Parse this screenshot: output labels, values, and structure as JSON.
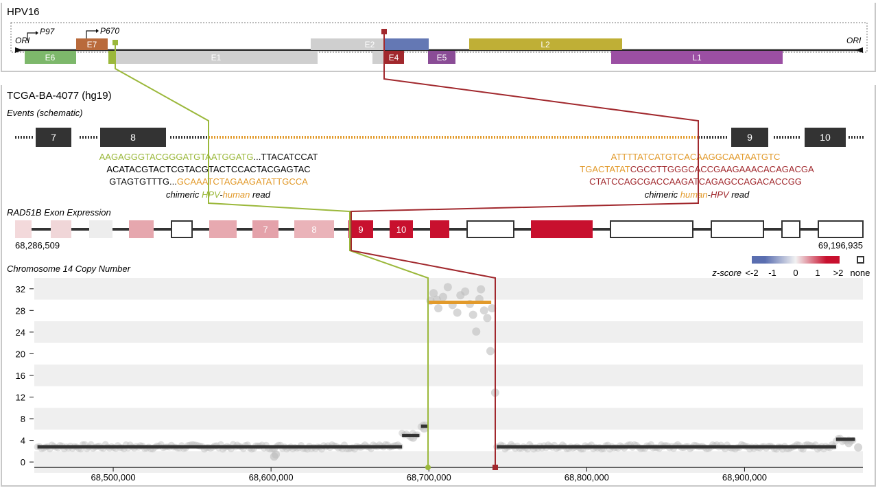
{
  "colors": {
    "green": "#9BB83B",
    "orange": "#E29A2B",
    "red": "#A1282D",
    "dark": "#333333",
    "gray": "#CFCFCF",
    "e6": "#7DB86B",
    "e7": "#B96A3B",
    "e2": "#6478B4",
    "e4": "#A1282D",
    "e5": "#8A4C96",
    "l2": "#BFAF36",
    "l1": "#9B4FA3"
  },
  "hpv": {
    "title": "HPV16",
    "ori_left": "ORI",
    "ori_right": "ORI",
    "promoters": [
      {
        "label": "P97"
      },
      {
        "label": "P670"
      }
    ],
    "genes": [
      {
        "name": "E6",
        "color": "#7DB86B"
      },
      {
        "name": "E7",
        "color": "#B96A3B"
      },
      {
        "name": "E1",
        "color": "#CFCFCF"
      },
      {
        "name": "E2",
        "color": "#CFCFCF"
      },
      {
        "name": "E4",
        "color": "#A1282D"
      },
      {
        "name": "E5",
        "color": "#8A4C96"
      },
      {
        "name": "L2",
        "color": "#BFAF36"
      },
      {
        "name": "L1",
        "color": "#9B4FA3"
      }
    ]
  },
  "sample": {
    "title": "TCGA-BA-4077 (hg19)"
  },
  "events": {
    "title": "Events (schematic)",
    "exons": [
      "7",
      "8",
      "9",
      "10"
    ],
    "left_read": {
      "line1_green": "AAGAGGGTACGGGATGTAATGGATG",
      "line1_black": "...TTACATCCAT",
      "line2": "ACATACGTACTCGTACGTACTCCACTACGAGTAC",
      "line3_black": "GTAGTGTTTG...",
      "line3_orange": "GCAAATCTAGAAGATATTGCCA",
      "caption_pre": "chimeric ",
      "caption_a": "HPV",
      "caption_mid": "-",
      "caption_b": "human",
      "caption_post": " read"
    },
    "right_read": {
      "line1": "ATTTTATCATGTCACAAGGCAATAATGTC",
      "line2_orange": "TGACTATAT",
      "line2_red": "CGCCTTGGGCACCGAAGAAACACAGACGA",
      "line3": "CTATCCAGCGACCAAGATCAGAGCCAGACACCGG",
      "caption_pre": "chimeric ",
      "caption_a": "human",
      "caption_mid": "-",
      "caption_b": "HPV",
      "caption_post": " read"
    }
  },
  "rad51b": {
    "title": "RAD51B Exon Expression",
    "start_label": "68,286,509",
    "end_label": "69,196,935",
    "exon_labels": [
      "7",
      "8",
      "9",
      "10"
    ],
    "legend": {
      "title": "z-score",
      "ticks": [
        "<-2",
        "-1",
        "0",
        "1",
        ">2"
      ],
      "none": "none",
      "low_color": "#5A6EB0",
      "mid_color": "#F2F2F2",
      "high_color": "#C8102E"
    }
  },
  "chart_data": {
    "type": "scatter",
    "title": "Chromosome 14 Copy Number",
    "xlim": [
      68450000,
      68975000
    ],
    "ylim": [
      -1,
      34
    ],
    "x_ticks": [
      68500000,
      68600000,
      68700000,
      68800000,
      68900000
    ],
    "x_tick_labels": [
      "68,500,000",
      "68,600,000",
      "68,700,000",
      "68,800,000",
      "68,900,000"
    ],
    "y_ticks": [
      0,
      4,
      8,
      12,
      16,
      20,
      24,
      28,
      32
    ],
    "segments": [
      {
        "x0": 68452000,
        "x1": 68683000,
        "y": 2.8,
        "color": "#333333"
      },
      {
        "x0": 68683000,
        "x1": 68694000,
        "y": 4.9,
        "color": "#333333"
      },
      {
        "x0": 68695000,
        "x1": 68699000,
        "y": 6.6,
        "color": "#333333"
      },
      {
        "x0": 68700000,
        "x1": 68739500,
        "y": 29.5,
        "color": "#E29A2B"
      },
      {
        "x0": 68743000,
        "x1": 68958000,
        "y": 2.8,
        "color": "#333333"
      },
      {
        "x0": 68958000,
        "x1": 68970000,
        "y": 4.2,
        "color": "#333333"
      }
    ],
    "points": [
      [
        68602000,
        1.0
      ],
      [
        68603000,
        1.4
      ],
      [
        68690000,
        4.5
      ],
      [
        68697000,
        6.2
      ],
      [
        68701000,
        29.8
      ],
      [
        68703000,
        31.2
      ],
      [
        68706000,
        28.4
      ],
      [
        68709000,
        30.5
      ],
      [
        68712000,
        32.3
      ],
      [
        68715000,
        29.0
      ],
      [
        68718000,
        27.6
      ],
      [
        68720000,
        30.8
      ],
      [
        68723000,
        31.5
      ],
      [
        68726000,
        29.2
      ],
      [
        68728000,
        27.2
      ],
      [
        68730000,
        24.1
      ],
      [
        68732000,
        30.1
      ],
      [
        68735000,
        28.0
      ],
      [
        68737000,
        26.6
      ],
      [
        68739000,
        20.5
      ],
      [
        68740000,
        28.4
      ],
      [
        68742000,
        12.8
      ],
      [
        68705000,
        30.0
      ],
      [
        68733000,
        31.9
      ],
      [
        68966000,
        3.5
      ],
      [
        68972000,
        2.7
      ]
    ],
    "breakpoints": [
      {
        "x": 68700000,
        "color": "#9BB83B"
      },
      {
        "x": 68742000,
        "color": "#A1282D"
      }
    ]
  }
}
